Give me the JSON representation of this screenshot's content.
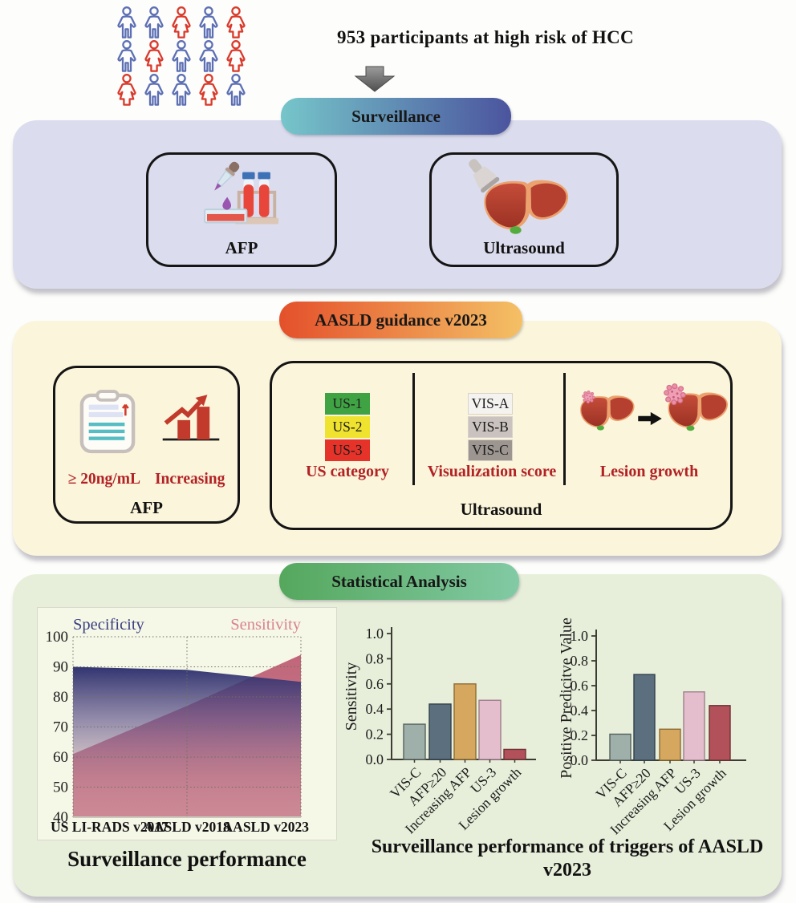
{
  "header": {
    "title": "953 participants at high risk of HCC",
    "people_pattern": [
      [
        "blue",
        "blue",
        "red",
        "blue",
        "red"
      ],
      [
        "blue",
        "red",
        "blue",
        "blue",
        "red"
      ],
      [
        "red",
        "blue",
        "blue",
        "red",
        "blue"
      ]
    ],
    "people_colors": {
      "blue": "#5C6FB4",
      "red": "#D93A2B"
    }
  },
  "surveillance": {
    "banner_label": "Surveillance",
    "banner_gradient": {
      "from": "#76C6CA",
      "to": "#4B549E"
    },
    "box_bg": "#DBDCEE",
    "afp_card_label": "AFP",
    "ultrasound_card_label": "Ultrasound"
  },
  "aasld": {
    "banner_label": "AASLD guidance v2023",
    "banner_gradient": {
      "from": "#E4502B",
      "to": "#F4C065"
    },
    "box_bg": "#FBF5DB",
    "afp_card": {
      "threshold": "≥ 20ng/mL",
      "trend": "Increasing",
      "label": "AFP",
      "accent_color": "#B22225"
    },
    "ultrasound_card": {
      "us_categories": [
        {
          "label": "US-1",
          "color": "#3FA344"
        },
        {
          "label": "US-2",
          "color": "#EFE32F"
        },
        {
          "label": "US-3",
          "color": "#E6332A"
        }
      ],
      "us_category_label": "US category",
      "vis_scores": [
        {
          "label": "VIS-A",
          "color": "#F5F3F0"
        },
        {
          "label": "VIS-B",
          "color": "#CAC2BE"
        },
        {
          "label": "VIS-C",
          "color": "#9D9590"
        }
      ],
      "vis_label": "Visualization score",
      "lesion_label": "Lesion growth",
      "label": "Ultrasound"
    }
  },
  "stats": {
    "banner_label": "Statistical Analysis",
    "banner_gradient": {
      "from": "#55A75D",
      "to": "#82CAA4"
    },
    "box_bg": "#E7EFDA",
    "right_chart_title": "Surveillance performance of triggers of AASLD v2023"
  },
  "chart_data": [
    {
      "type": "area",
      "title": "Surveillance performance",
      "categories": [
        "US LI-RADS v2017",
        "AASLD v2018",
        "AASLD v2023"
      ],
      "series": [
        {
          "name": "Specificity",
          "values": [
            90,
            89,
            85
          ],
          "color": "#3A3F80"
        },
        {
          "name": "Sensitivity",
          "values": [
            61,
            77,
            94
          ],
          "color": "#D9838F"
        }
      ],
      "ylim": [
        40,
        100
      ],
      "yticks": [
        40,
        50,
        60,
        70,
        80,
        90,
        100
      ],
      "grid": "dotted",
      "panel_bg": "#F5F7E7"
    },
    {
      "type": "bar",
      "ylabel": "Sensitivity",
      "categories": [
        "VIS-C",
        "AFP≥20",
        "Increasing AFP",
        "US-3",
        "Lesion growth"
      ],
      "values": [
        0.28,
        0.44,
        0.6,
        0.47,
        0.08
      ],
      "ylim": [
        0,
        1.0
      ],
      "yticks": [
        0,
        0.2,
        0.4,
        0.6,
        0.8,
        1.0
      ],
      "bar_colors": [
        {
          "fill": "#9FB0AB",
          "stroke": "#55615E"
        },
        {
          "fill": "#5B6F7F",
          "stroke": "#33414C"
        },
        {
          "fill": "#D6A75F",
          "stroke": "#8F6C35"
        },
        {
          "fill": "#E4BECC",
          "stroke": "#9E7F8C"
        },
        {
          "fill": "#B25159",
          "stroke": "#6E3036"
        }
      ]
    },
    {
      "type": "bar",
      "ylabel": "Positive Predicitve Value",
      "categories": [
        "VIS-C",
        "AFP≥20",
        "Increasing AFP",
        "US-3",
        "Lesion growth"
      ],
      "values": [
        0.21,
        0.69,
        0.25,
        0.55,
        0.44
      ],
      "ylim": [
        0,
        1.0
      ],
      "yticks": [
        0,
        0.2,
        0.4,
        0.6,
        0.8,
        1.0
      ],
      "bar_colors": [
        {
          "fill": "#9FB0AB",
          "stroke": "#55615E"
        },
        {
          "fill": "#5B6F7F",
          "stroke": "#33414C"
        },
        {
          "fill": "#D6A75F",
          "stroke": "#8F6C35"
        },
        {
          "fill": "#E4BECC",
          "stroke": "#9E7F8C"
        },
        {
          "fill": "#B25159",
          "stroke": "#6E3036"
        }
      ]
    }
  ]
}
